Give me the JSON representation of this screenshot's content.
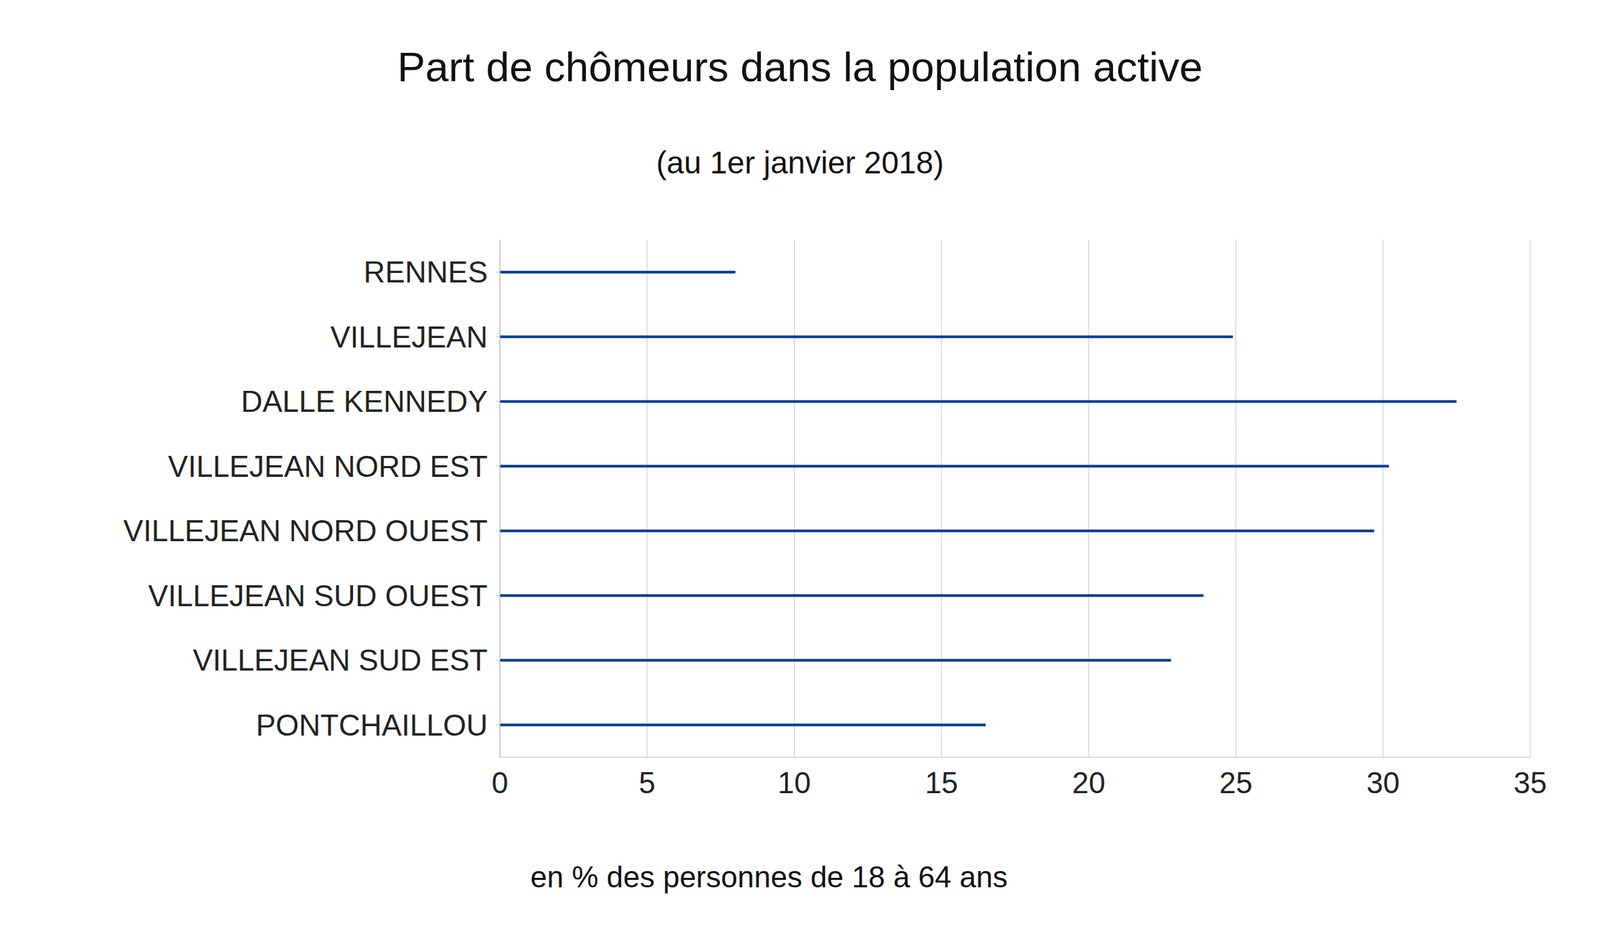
{
  "chart_data": {
    "type": "bar",
    "title": "Part de chômeurs dans la population active",
    "subtitle": "(au 1er janvier 2018)",
    "x_label": "en % des personnes de 18 à 64 ans",
    "orientation": "horizontal",
    "categories": [
      "RENNES",
      "VILLEJEAN",
      "DALLE KENNEDY",
      "VILLEJEAN NORD EST",
      "VILLEJEAN NORD OUEST",
      "VILLEJEAN SUD OUEST",
      "VILLEJEAN SUD EST",
      "PONTCHAILLOU"
    ],
    "values": [
      8,
      24.9,
      32.5,
      30.2,
      29.7,
      23.9,
      22.8,
      16.5
    ],
    "color": "#0b3f8c",
    "xlim": [
      0,
      35
    ],
    "xticks": [
      0,
      5,
      10,
      15,
      20,
      25,
      30,
      35
    ],
    "grid": true
  }
}
